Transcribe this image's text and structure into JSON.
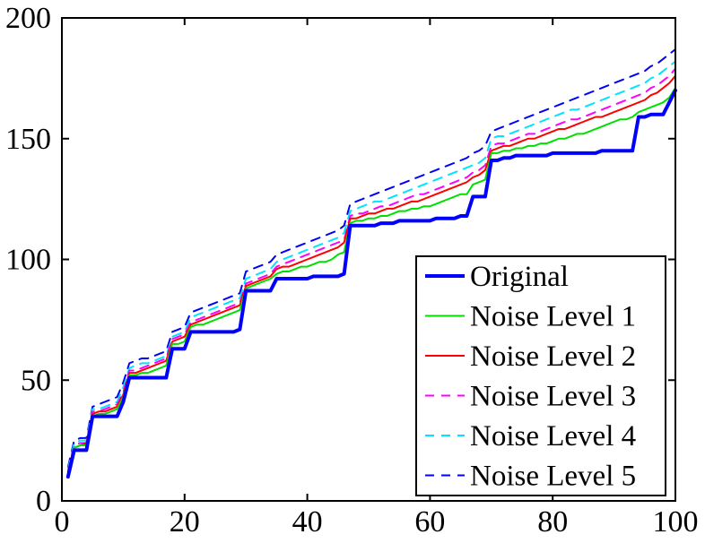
{
  "chart_data": {
    "type": "line",
    "title": "",
    "xlabel": "",
    "ylabel": "",
    "xlim": [
      0,
      100
    ],
    "ylim": [
      0,
      200
    ],
    "xticks": [
      0,
      20,
      40,
      60,
      80,
      100
    ],
    "yticks": [
      0,
      50,
      100,
      150,
      200
    ],
    "xtick_labels": [
      "0",
      "20",
      "40",
      "60",
      "80",
      "100"
    ],
    "ytick_labels": [
      "0",
      "50",
      "100",
      "150",
      "200"
    ],
    "grid": false,
    "legend": {
      "placement": "bottom-right"
    },
    "series": [
      {
        "name": "Original",
        "color": "#0000ff",
        "style": "solid",
        "x": [
          1,
          2,
          3,
          4,
          5,
          6,
          7,
          8,
          9,
          10,
          11,
          12,
          13,
          14,
          15,
          16,
          17,
          18,
          19,
          20,
          21,
          22,
          23,
          24,
          25,
          26,
          27,
          28,
          29,
          30,
          31,
          32,
          33,
          34,
          35,
          36,
          37,
          38,
          39,
          40,
          41,
          42,
          43,
          44,
          45,
          46,
          47,
          48,
          49,
          50,
          51,
          52,
          53,
          54,
          55,
          56,
          57,
          58,
          59,
          60,
          61,
          62,
          63,
          64,
          65,
          66,
          67,
          68,
          69,
          70,
          71,
          72,
          73,
          74,
          75,
          76,
          77,
          78,
          79,
          80,
          81,
          82,
          83,
          84,
          85,
          86,
          87,
          88,
          89,
          90,
          91,
          92,
          93,
          94,
          95,
          96,
          97,
          98,
          99,
          100
        ],
        "values": [
          10,
          21,
          21,
          21,
          35,
          35,
          35,
          35,
          35,
          41,
          51,
          51,
          51,
          51,
          51,
          51,
          51,
          63,
          63,
          63,
          70,
          70,
          70,
          70,
          70,
          70,
          70,
          70,
          71,
          87,
          87,
          87,
          87,
          87,
          92,
          92,
          92,
          92,
          92,
          92,
          93,
          93,
          93,
          93,
          93,
          94,
          114,
          114,
          114,
          114,
          114,
          115,
          115,
          115,
          116,
          116,
          116,
          116,
          116,
          116,
          117,
          117,
          117,
          117,
          118,
          118,
          126,
          126,
          126,
          141,
          141,
          142,
          142,
          143,
          143,
          143,
          143,
          143,
          143,
          144,
          144,
          144,
          144,
          144,
          144,
          144,
          144,
          145,
          145,
          145,
          145,
          145,
          145,
          159,
          159,
          160,
          160,
          160,
          165,
          170
        ]
      },
      {
        "name": "Noise Level 1",
        "color": "#00e000",
        "style": "solid",
        "x": [
          1,
          2,
          3,
          4,
          5,
          6,
          7,
          8,
          9,
          10,
          11,
          12,
          13,
          14,
          15,
          16,
          17,
          18,
          19,
          20,
          21,
          22,
          23,
          24,
          25,
          26,
          27,
          28,
          29,
          30,
          31,
          32,
          33,
          34,
          35,
          36,
          37,
          38,
          39,
          40,
          41,
          42,
          43,
          44,
          45,
          46,
          47,
          48,
          49,
          50,
          51,
          52,
          53,
          54,
          55,
          56,
          57,
          58,
          59,
          60,
          61,
          62,
          63,
          64,
          65,
          66,
          67,
          68,
          69,
          70,
          71,
          72,
          73,
          74,
          75,
          76,
          77,
          78,
          79,
          80,
          81,
          82,
          83,
          84,
          85,
          86,
          87,
          88,
          89,
          90,
          91,
          92,
          93,
          94,
          95,
          96,
          97,
          98,
          99,
          100
        ],
        "values": [
          11,
          22,
          23,
          23,
          35,
          36,
          36,
          37,
          38,
          43,
          52,
          52,
          53,
          53,
          54,
          55,
          56,
          65,
          65,
          66,
          72,
          73,
          73,
          74,
          75,
          76,
          77,
          78,
          79,
          88,
          89,
          90,
          91,
          92,
          94,
          95,
          95,
          96,
          97,
          97,
          98,
          99,
          99,
          100,
          102,
          103,
          115,
          116,
          116,
          117,
          117,
          118,
          118,
          119,
          120,
          120,
          121,
          121,
          122,
          122,
          123,
          124,
          125,
          126,
          127,
          127,
          131,
          132,
          133,
          144,
          144,
          145,
          145,
          146,
          146,
          147,
          147,
          148,
          148,
          149,
          150,
          150,
          151,
          152,
          152,
          153,
          154,
          155,
          156,
          157,
          158,
          158,
          159,
          161,
          162,
          163,
          164,
          165,
          167,
          171
        ]
      },
      {
        "name": "Noise Level 2",
        "color": "#ff0000",
        "style": "solid",
        "x": [
          1,
          2,
          3,
          4,
          5,
          6,
          7,
          8,
          9,
          10,
          11,
          12,
          13,
          14,
          15,
          16,
          17,
          18,
          19,
          20,
          21,
          22,
          23,
          24,
          25,
          26,
          27,
          28,
          29,
          30,
          31,
          32,
          33,
          34,
          35,
          36,
          37,
          38,
          39,
          40,
          41,
          42,
          43,
          44,
          45,
          46,
          47,
          48,
          49,
          50,
          51,
          52,
          53,
          54,
          55,
          56,
          57,
          58,
          59,
          60,
          61,
          62,
          63,
          64,
          65,
          66,
          67,
          68,
          69,
          70,
          71,
          72,
          73,
          74,
          75,
          76,
          77,
          78,
          79,
          80,
          81,
          82,
          83,
          84,
          85,
          86,
          87,
          88,
          89,
          90,
          91,
          92,
          93,
          94,
          95,
          96,
          97,
          98,
          99,
          100
        ],
        "values": [
          12,
          22,
          23,
          24,
          36,
          37,
          37,
          38,
          39,
          44,
          53,
          53,
          54,
          55,
          56,
          57,
          58,
          66,
          67,
          68,
          73,
          74,
          75,
          76,
          77,
          78,
          79,
          80,
          81,
          89,
          90,
          91,
          92,
          93,
          96,
          97,
          97,
          98,
          99,
          100,
          101,
          102,
          103,
          104,
          105,
          107,
          117,
          117,
          118,
          119,
          119,
          120,
          121,
          121,
          122,
          123,
          124,
          124,
          125,
          126,
          127,
          128,
          129,
          130,
          131,
          132,
          134,
          135,
          137,
          145,
          146,
          147,
          147,
          148,
          149,
          150,
          150,
          151,
          152,
          153,
          154,
          154,
          155,
          156,
          157,
          158,
          159,
          159,
          160,
          161,
          162,
          163,
          164,
          165,
          166,
          168,
          169,
          171,
          173,
          176
        ]
      },
      {
        "name": "Noise Level 3",
        "color": "#ff00ff",
        "style": "dashed",
        "x": [
          1,
          2,
          3,
          4,
          5,
          6,
          7,
          8,
          9,
          10,
          11,
          12,
          13,
          14,
          15,
          16,
          17,
          18,
          19,
          20,
          21,
          22,
          23,
          24,
          25,
          26,
          27,
          28,
          29,
          30,
          31,
          32,
          33,
          34,
          35,
          36,
          37,
          38,
          39,
          40,
          41,
          42,
          43,
          44,
          45,
          46,
          47,
          48,
          49,
          50,
          51,
          52,
          53,
          54,
          55,
          56,
          57,
          58,
          59,
          60,
          61,
          62,
          63,
          64,
          65,
          66,
          67,
          68,
          69,
          70,
          71,
          72,
          73,
          74,
          75,
          76,
          77,
          78,
          79,
          80,
          81,
          82,
          83,
          84,
          85,
          86,
          87,
          88,
          89,
          90,
          91,
          92,
          93,
          94,
          95,
          96,
          97,
          98,
          99,
          100
        ],
        "values": [
          12,
          23,
          24,
          24,
          37,
          37,
          38,
          39,
          40,
          45,
          54,
          54,
          55,
          56,
          57,
          58,
          59,
          67,
          68,
          69,
          74,
          75,
          76,
          77,
          78,
          79,
          80,
          81,
          82,
          90,
          91,
          92,
          93,
          94,
          97,
          98,
          99,
          100,
          101,
          102,
          103,
          104,
          105,
          106,
          107,
          108,
          118,
          119,
          119,
          120,
          121,
          122,
          122,
          123,
          124,
          125,
          126,
          127,
          127,
          128,
          129,
          130,
          131,
          132,
          133,
          134,
          136,
          137,
          139,
          147,
          148,
          148,
          149,
          150,
          151,
          152,
          152,
          153,
          154,
          155,
          156,
          157,
          158,
          158,
          159,
          160,
          161,
          162,
          163,
          164,
          165,
          166,
          167,
          168,
          169,
          171,
          172,
          174,
          176,
          179
        ]
      },
      {
        "name": "Noise Level 4",
        "color": "#00e5ff",
        "style": "dashed",
        "x": [
          1,
          2,
          3,
          4,
          5,
          6,
          7,
          8,
          9,
          10,
          11,
          12,
          13,
          14,
          15,
          16,
          17,
          18,
          19,
          20,
          21,
          22,
          23,
          24,
          25,
          26,
          27,
          28,
          29,
          30,
          31,
          32,
          33,
          34,
          35,
          36,
          37,
          38,
          39,
          40,
          41,
          42,
          43,
          44,
          45,
          46,
          47,
          48,
          49,
          50,
          51,
          52,
          53,
          54,
          55,
          56,
          57,
          58,
          59,
          60,
          61,
          62,
          63,
          64,
          65,
          66,
          67,
          68,
          69,
          70,
          71,
          72,
          73,
          74,
          75,
          76,
          77,
          78,
          79,
          80,
          81,
          82,
          83,
          84,
          85,
          86,
          87,
          88,
          89,
          90,
          91,
          92,
          93,
          94,
          95,
          96,
          97,
          98,
          99,
          100
        ],
        "values": [
          13,
          24,
          25,
          25,
          38,
          38,
          39,
          40,
          41,
          47,
          55,
          56,
          57,
          57,
          58,
          59,
          60,
          68,
          69,
          70,
          76,
          77,
          78,
          79,
          80,
          81,
          82,
          83,
          84,
          92,
          93,
          94,
          95,
          96,
          99,
          100,
          101,
          102,
          103,
          104,
          105,
          106,
          107,
          108,
          109,
          111,
          120,
          121,
          122,
          123,
          124,
          124,
          125,
          126,
          127,
          128,
          129,
          130,
          131,
          132,
          133,
          134,
          135,
          136,
          137,
          138,
          139,
          140,
          142,
          150,
          151,
          151,
          152,
          153,
          154,
          155,
          156,
          157,
          158,
          159,
          160,
          161,
          162,
          162,
          163,
          164,
          165,
          166,
          167,
          168,
          169,
          170,
          171,
          172,
          173,
          175,
          176,
          178,
          180,
          182
        ]
      },
      {
        "name": "Noise Level 5",
        "color": "#0000ff",
        "style": "dashed",
        "x": [
          1,
          2,
          3,
          4,
          5,
          6,
          7,
          8,
          9,
          10,
          11,
          12,
          13,
          14,
          15,
          16,
          17,
          18,
          19,
          20,
          21,
          22,
          23,
          24,
          25,
          26,
          27,
          28,
          29,
          30,
          31,
          32,
          33,
          34,
          35,
          36,
          37,
          38,
          39,
          40,
          41,
          42,
          43,
          44,
          45,
          46,
          47,
          48,
          49,
          50,
          51,
          52,
          53,
          54,
          55,
          56,
          57,
          58,
          59,
          60,
          61,
          62,
          63,
          64,
          65,
          66,
          67,
          68,
          69,
          70,
          71,
          72,
          73,
          74,
          75,
          76,
          77,
          78,
          79,
          80,
          81,
          82,
          83,
          84,
          85,
          86,
          87,
          88,
          89,
          90,
          91,
          92,
          93,
          94,
          95,
          96,
          97,
          98,
          99,
          100
        ],
        "values": [
          14,
          25,
          26,
          26,
          39,
          40,
          41,
          42,
          43,
          49,
          57,
          58,
          59,
          59,
          60,
          61,
          62,
          70,
          71,
          72,
          78,
          79,
          80,
          81,
          82,
          83,
          84,
          85,
          86,
          95,
          96,
          97,
          98,
          99,
          102,
          103,
          104,
          105,
          106,
          107,
          108,
          109,
          110,
          111,
          112,
          114,
          123,
          124,
          125,
          126,
          127,
          128,
          129,
          130,
          131,
          132,
          133,
          134,
          135,
          136,
          137,
          138,
          139,
          140,
          141,
          142,
          144,
          145,
          147,
          153,
          154,
          155,
          156,
          157,
          158,
          159,
          160,
          161,
          162,
          163,
          164,
          165,
          166,
          167,
          168,
          169,
          170,
          171,
          172,
          173,
          174,
          175,
          176,
          177,
          178,
          180,
          181,
          183,
          185,
          187
        ]
      }
    ]
  }
}
